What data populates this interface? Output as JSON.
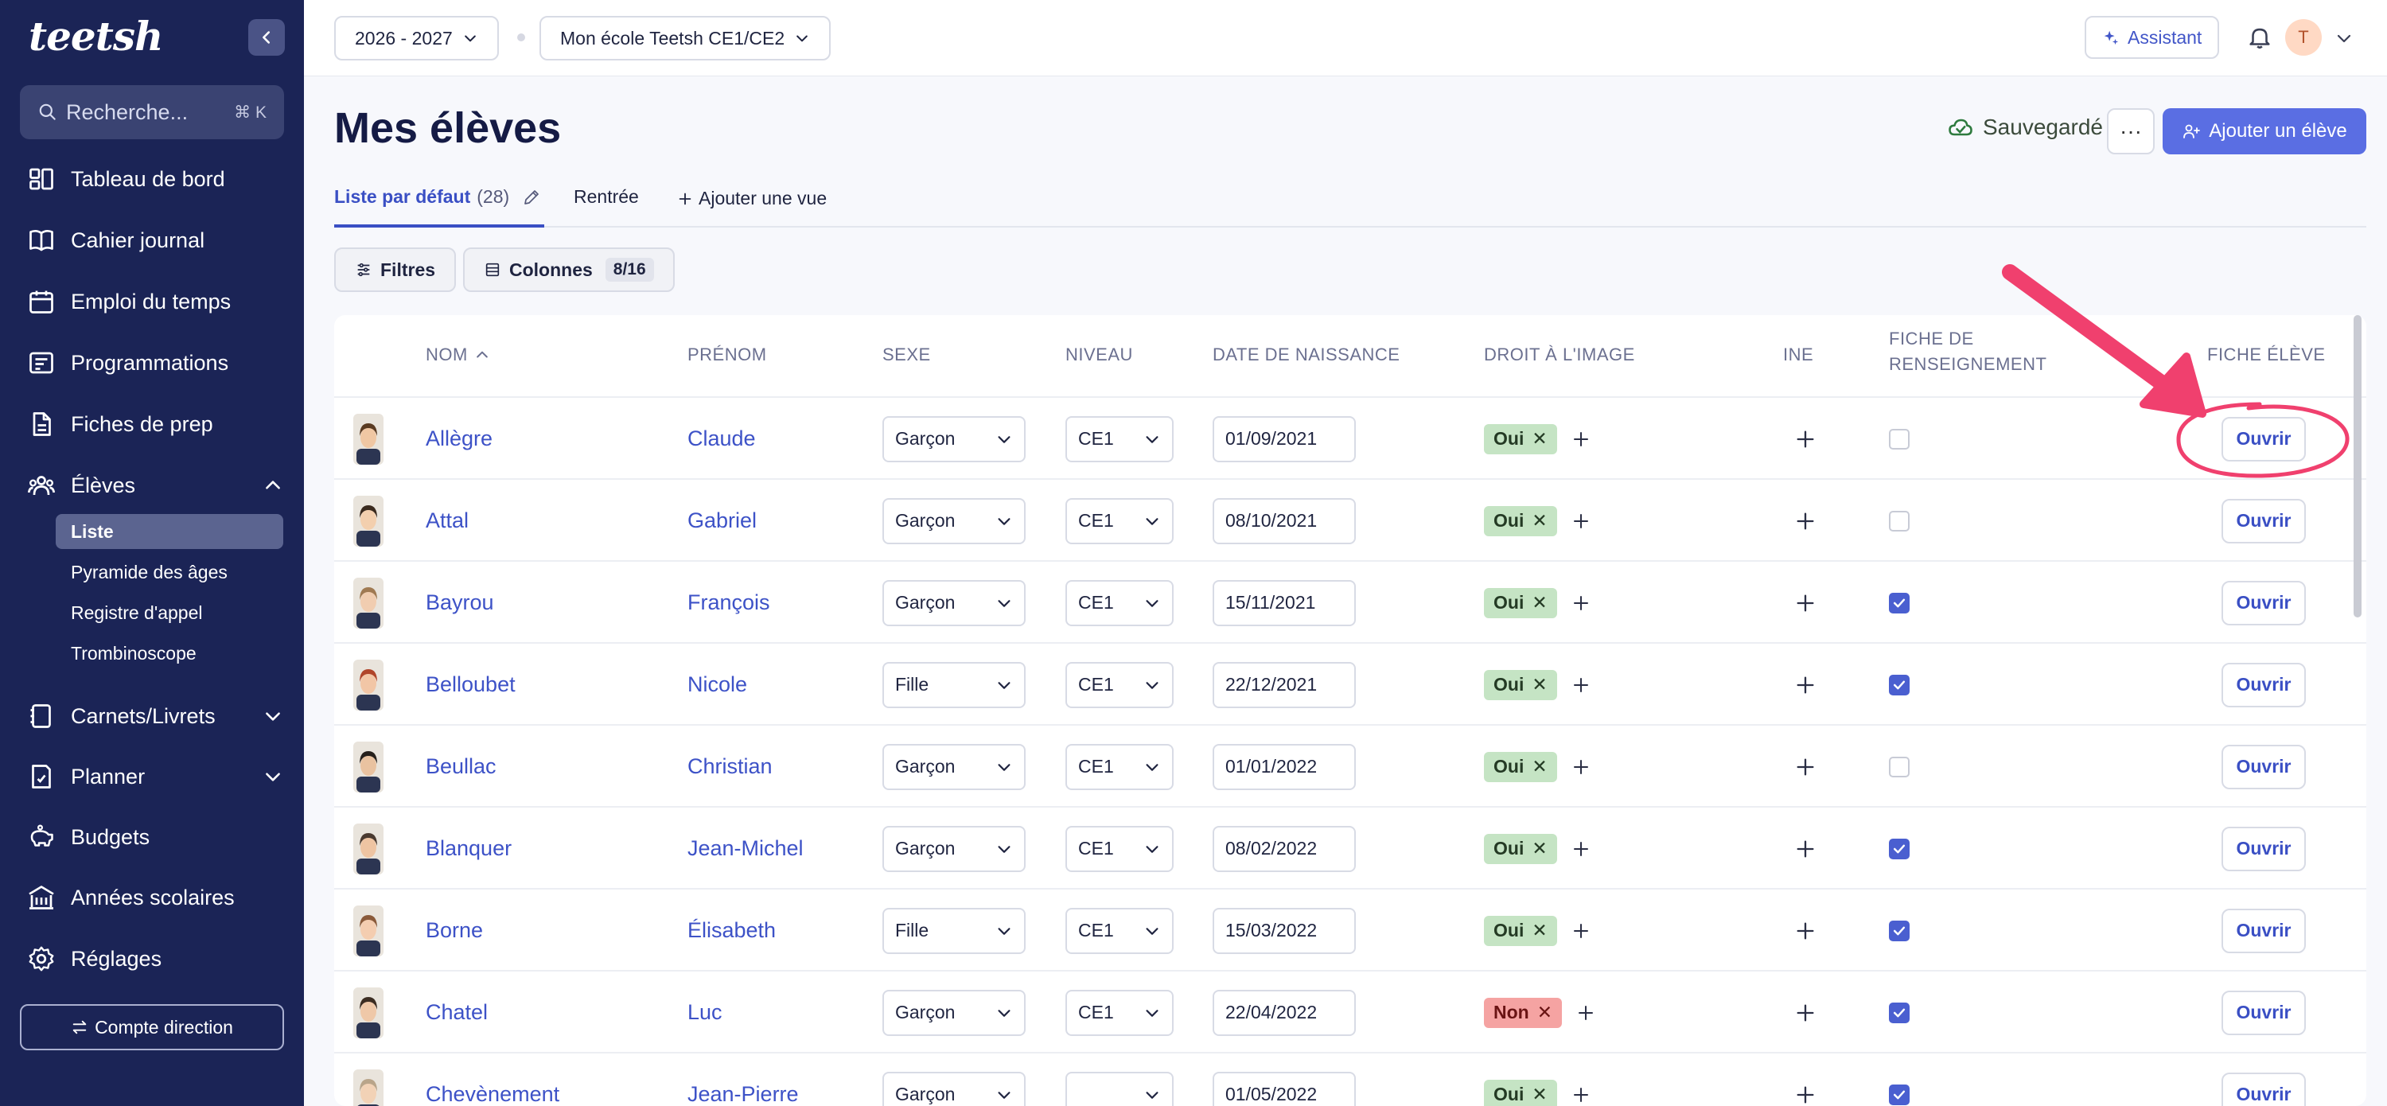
{
  "app": {
    "logo": "teetsh"
  },
  "sidebar": {
    "search_placeholder": "Recherche...",
    "search_shortcut": "⌘ K",
    "items": [
      {
        "label": "Tableau de bord",
        "icon": "dashboard-icon"
      },
      {
        "label": "Cahier journal",
        "icon": "book-icon"
      },
      {
        "label": "Emploi du temps",
        "icon": "calendar-icon"
      },
      {
        "label": "Programmations",
        "icon": "programmations-icon"
      },
      {
        "label": "Fiches de prep",
        "icon": "file-icon"
      },
      {
        "label": "Élèves",
        "icon": "students-icon"
      },
      {
        "label": "Carnets/Livrets",
        "icon": "notebook-icon"
      },
      {
        "label": "Planner",
        "icon": "planner-icon"
      },
      {
        "label": "Budgets",
        "icon": "piggy-bank-icon"
      },
      {
        "label": "Années scolaires",
        "icon": "school-icon"
      },
      {
        "label": "Réglages",
        "icon": "gear-icon"
      }
    ],
    "sub_items": [
      "Liste",
      "Pyramide des âges",
      "Registre d'appel",
      "Trombinoscope"
    ],
    "direction_button": "Compte direction"
  },
  "topbar": {
    "year": "2026 - 2027",
    "school": "Mon école Teetsh CE1/CE2",
    "assistant": "Assistant",
    "avatar_initial": "T"
  },
  "header": {
    "title": "Mes élèves",
    "saved": "Sauvegardé",
    "more": "···",
    "add_button": "Ajouter un élève"
  },
  "tabs": {
    "default_label": "Liste par défaut",
    "default_count": "(28)",
    "rentree": "Rentrée",
    "add_view": "Ajouter une vue"
  },
  "toolbar": {
    "filters": "Filtres",
    "columns": "Colonnes",
    "columns_count": "8/16"
  },
  "table": {
    "headers": {
      "nom": "NOM",
      "prenom": "PRÉNOM",
      "sexe": "SEXE",
      "niveau": "NIVEAU",
      "naissance": "DATE DE NAISSANCE",
      "droit": "DROIT À L'IMAGE",
      "ine": "INE",
      "fiche_line1": "FICHE DE",
      "fiche_line2": "RENSEIGNEMENT",
      "fiche_eleve": "FICHE ÉLÈVE"
    },
    "open_label": "Ouvrir",
    "rows": [
      {
        "nom": "Allègre",
        "prenom": "Claude",
        "sexe": "Garçon",
        "niveau": "CE1",
        "naissance": "01/09/2021",
        "droit": "Oui",
        "fiche": false,
        "hair": "#5a3b22",
        "skin": "#f0c7a3"
      },
      {
        "nom": "Attal",
        "prenom": "Gabriel",
        "sexe": "Garçon",
        "niveau": "CE1",
        "naissance": "08/10/2021",
        "droit": "Oui",
        "fiche": false,
        "hair": "#3a2a1e",
        "skin": "#f3cfae"
      },
      {
        "nom": "Bayrou",
        "prenom": "François",
        "sexe": "Garçon",
        "niveau": "CE1",
        "naissance": "15/11/2021",
        "droit": "Oui",
        "fiche": true,
        "hair": "#a07a52",
        "skin": "#f1cdb0"
      },
      {
        "nom": "Belloubet",
        "prenom": "Nicole",
        "sexe": "Fille",
        "niveau": "CE1",
        "naissance": "22/12/2021",
        "droit": "Oui",
        "fiche": true,
        "hair": "#b0452a",
        "skin": "#f2c6a6"
      },
      {
        "nom": "Beullac",
        "prenom": "Christian",
        "sexe": "Garçon",
        "niveau": "CE1",
        "naissance": "01/01/2022",
        "droit": "Oui",
        "fiche": false,
        "hair": "#26201c",
        "skin": "#e9c2a0"
      },
      {
        "nom": "Blanquer",
        "prenom": "Jean-Michel",
        "sexe": "Garçon",
        "niveau": "CE1",
        "naissance": "08/02/2022",
        "droit": "Oui",
        "fiche": true,
        "hair": "#4a3a30",
        "skin": "#eec4a2"
      },
      {
        "nom": "Borne",
        "prenom": "Élisabeth",
        "sexe": "Fille",
        "niveau": "CE1",
        "naissance": "15/03/2022",
        "droit": "Oui",
        "fiche": true,
        "hair": "#8a5a3a",
        "skin": "#f4cdb0"
      },
      {
        "nom": "Chatel",
        "prenom": "Luc",
        "sexe": "Garçon",
        "niveau": "CE1",
        "naissance": "22/04/2022",
        "droit": "Non",
        "fiche": true,
        "hair": "#3c2d22",
        "skin": "#efc8a8"
      },
      {
        "nom": "Chevènement",
        "prenom": "Jean-Pierre",
        "sexe": "Garçon",
        "niveau": "",
        "naissance": "01/05/2022",
        "droit": "Oui",
        "fiche": true,
        "hair": "#b9a58a",
        "skin": "#f2d2b6"
      }
    ]
  },
  "colors": {
    "sidebar_bg": "#1b2456",
    "accent": "#5a6ee3",
    "link": "#3d52c7",
    "annotation": "#f0406e"
  }
}
